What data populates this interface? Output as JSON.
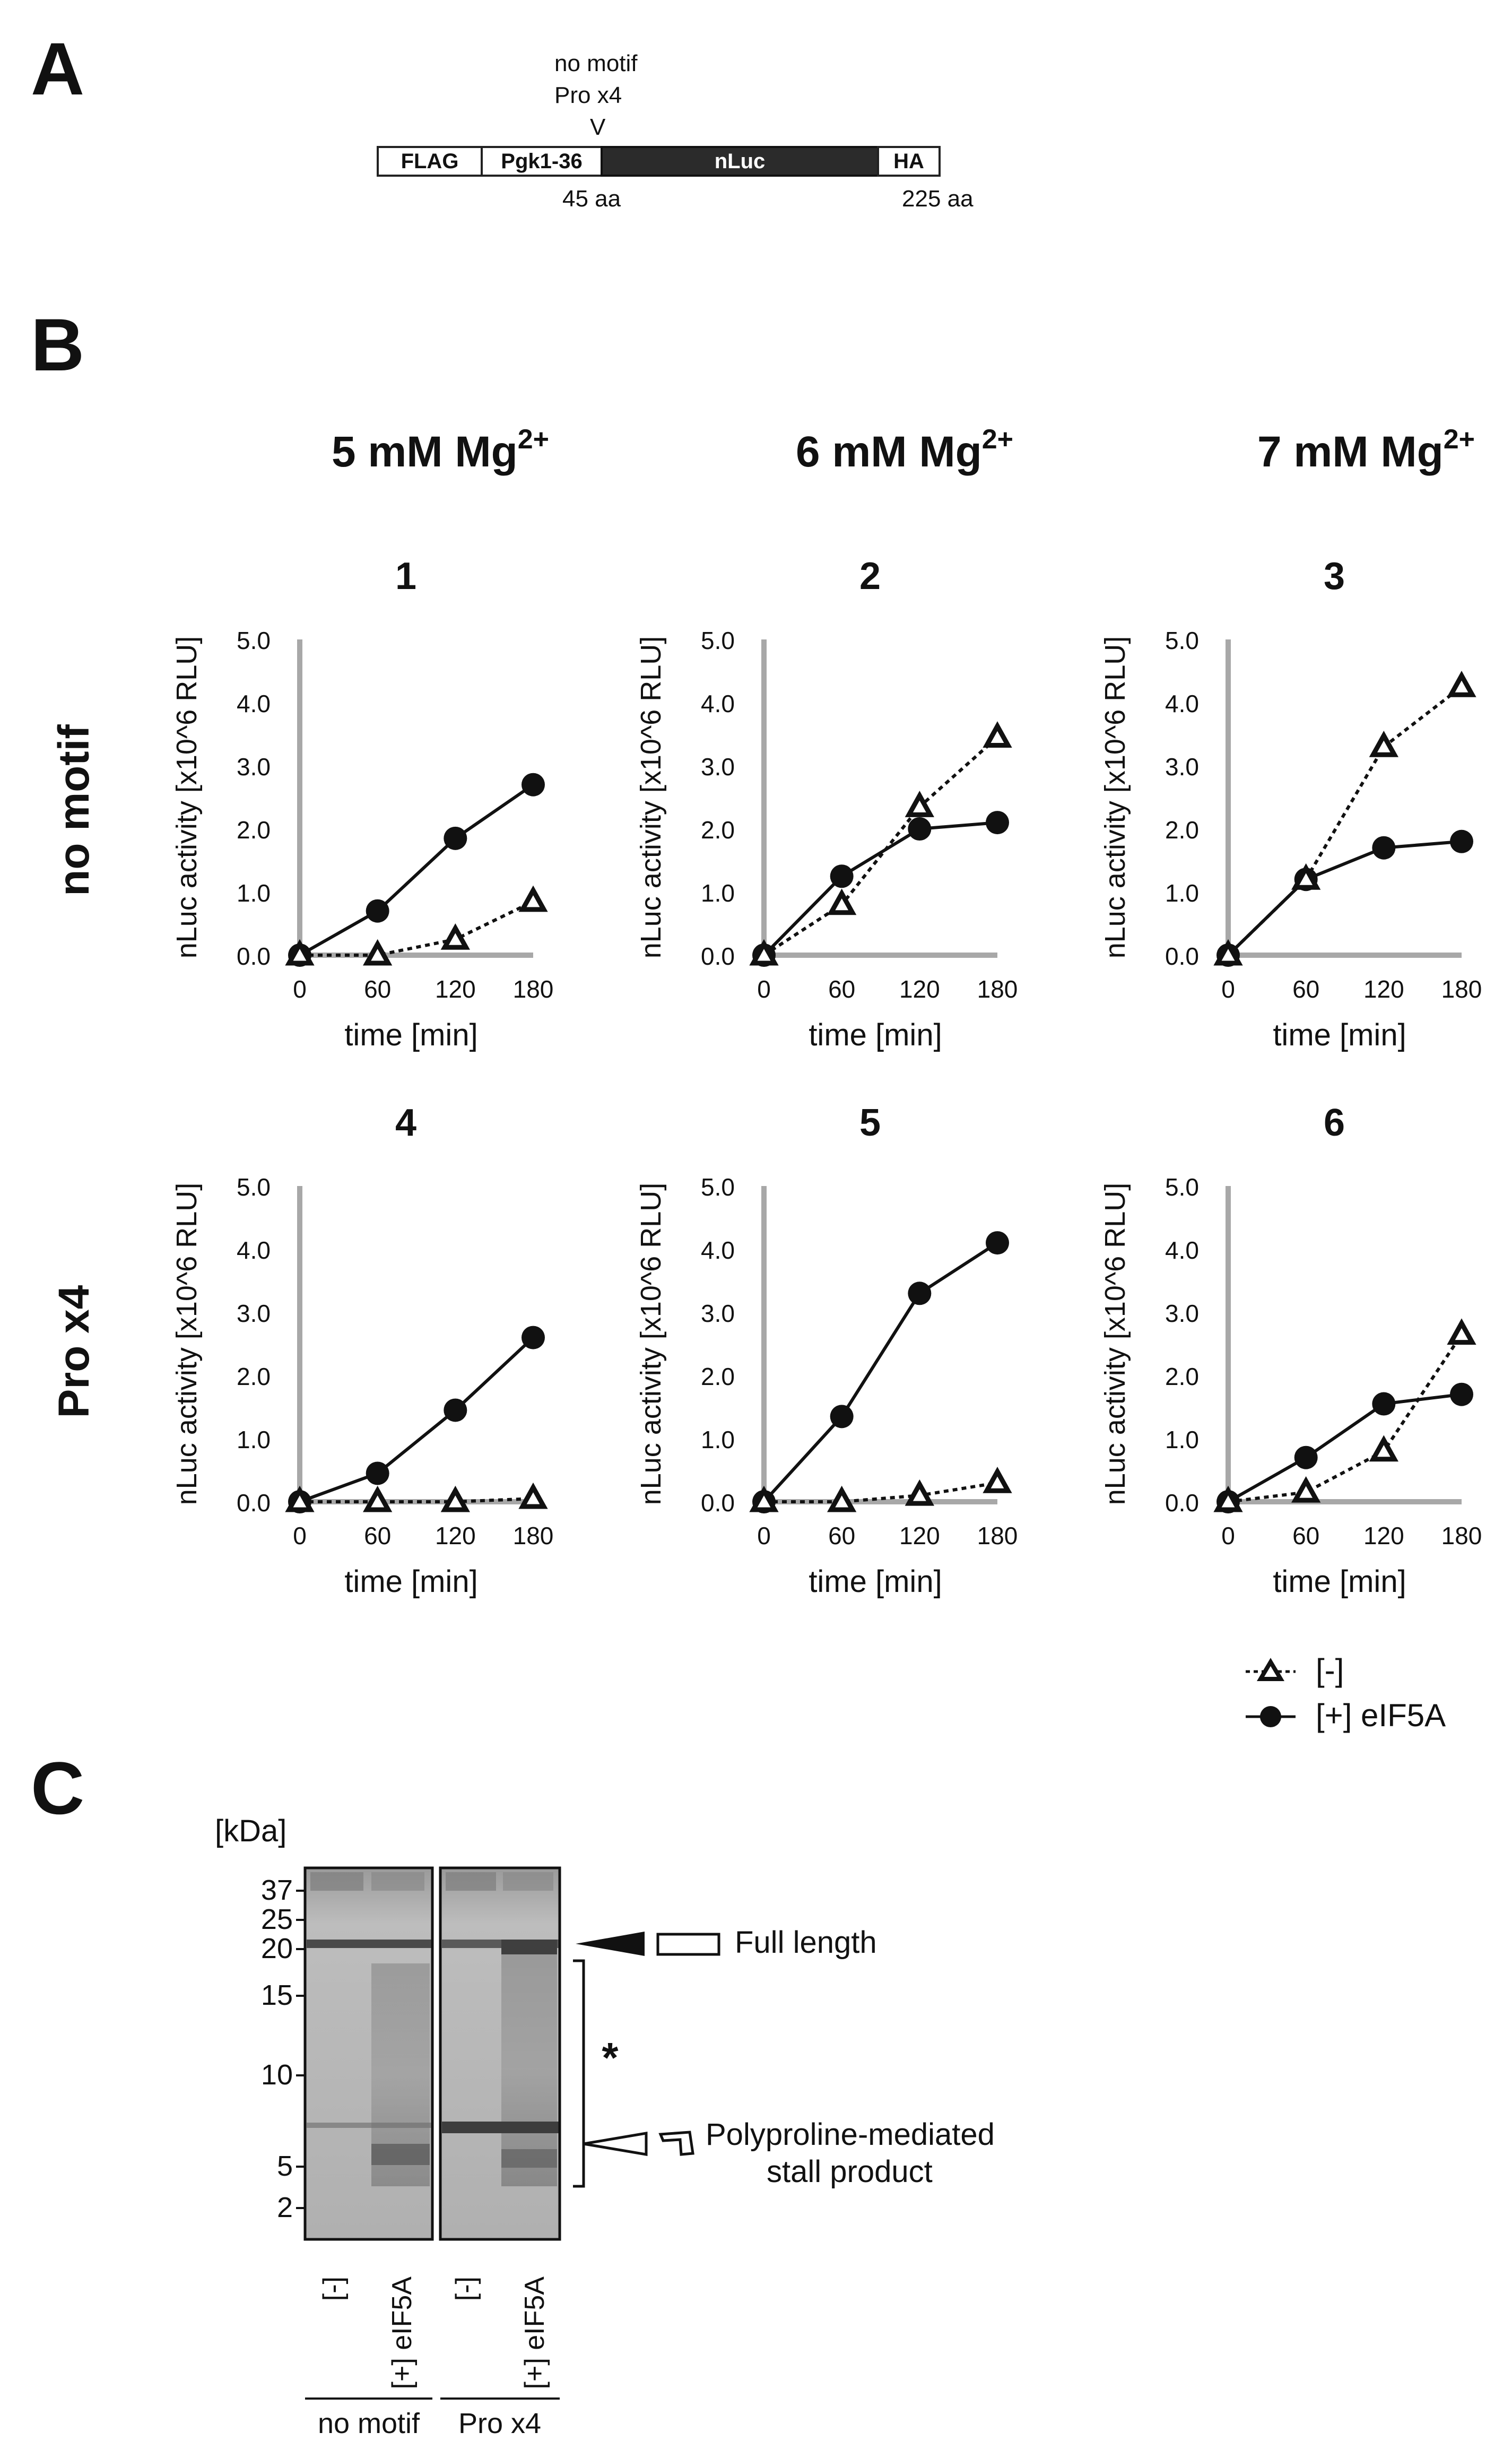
{
  "panel_a": {
    "letter": "A",
    "mutation_labels": [
      "no motif",
      "Pro x4"
    ],
    "insertion_marker": "V",
    "segments": {
      "flag": "FLAG",
      "pgk": "Pgk1-36",
      "nluc": "nLuc",
      "ha": "HA"
    },
    "position_left": "45 aa",
    "position_right": "225 aa"
  },
  "panel_b": {
    "letter": "B",
    "columns": [
      "5 mM Mg",
      "6 mM Mg",
      "7 mM Mg"
    ],
    "columns_superscript": "2+",
    "rows": [
      "no motif",
      "Pro x4"
    ],
    "legend": {
      "minus": "[-]",
      "plus": "[+] eIF5A"
    }
  },
  "chart_data": [
    {
      "type": "line",
      "panel_number": "1",
      "xlabel": "time [min]",
      "ylabel": "nLuc activity [x10^6 RLU]",
      "x": [
        0,
        60,
        120,
        180
      ],
      "xticks": [
        "0",
        "60",
        "120",
        "180"
      ],
      "yticks": [
        "0.0",
        "1.0",
        "2.0",
        "3.0",
        "4.0",
        "5.0"
      ],
      "ylim": [
        0,
        5
      ],
      "series": [
        {
          "name": "[-]",
          "values": [
            0.0,
            0.0,
            0.25,
            0.85
          ]
        },
        {
          "name": "[+] eIF5A",
          "values": [
            0.0,
            0.7,
            1.85,
            2.7
          ]
        }
      ]
    },
    {
      "type": "line",
      "panel_number": "2",
      "xlabel": "time [min]",
      "ylabel": "nLuc activity [x10^6 RLU]",
      "x": [
        0,
        60,
        120,
        180
      ],
      "xticks": [
        "0",
        "60",
        "120",
        "180"
      ],
      "yticks": [
        "0.0",
        "1.0",
        "2.0",
        "3.0",
        "4.0",
        "5.0"
      ],
      "ylim": [
        0,
        5
      ],
      "series": [
        {
          "name": "[-]",
          "values": [
            0.0,
            0.8,
            2.35,
            3.45
          ]
        },
        {
          "name": "[+] eIF5A",
          "values": [
            0.0,
            1.25,
            2.0,
            2.1
          ]
        }
      ]
    },
    {
      "type": "line",
      "panel_number": "3",
      "xlabel": "time [min]",
      "ylabel": "nLuc activity [x10^6 RLU]",
      "x": [
        0,
        60,
        120,
        180
      ],
      "xticks": [
        "0",
        "60",
        "120",
        "180"
      ],
      "yticks": [
        "0.0",
        "1.0",
        "2.0",
        "3.0",
        "4.0",
        "5.0"
      ],
      "ylim": [
        0,
        5
      ],
      "series": [
        {
          "name": "[-]",
          "values": [
            0.0,
            1.2,
            3.3,
            4.25
          ]
        },
        {
          "name": "[+] eIF5A",
          "values": [
            0.0,
            1.2,
            1.7,
            1.8
          ]
        }
      ]
    },
    {
      "type": "line",
      "panel_number": "4",
      "xlabel": "time [min]",
      "ylabel": "nLuc activity [x10^6 RLU]",
      "x": [
        0,
        60,
        120,
        180
      ],
      "xticks": [
        "0",
        "60",
        "120",
        "180"
      ],
      "yticks": [
        "0.0",
        "1.0",
        "2.0",
        "3.0",
        "4.0",
        "5.0"
      ],
      "ylim": [
        0,
        5
      ],
      "series": [
        {
          "name": "[-]",
          "values": [
            0.0,
            0.0,
            0.0,
            0.05
          ]
        },
        {
          "name": "[+] eIF5A",
          "values": [
            0.0,
            0.45,
            1.45,
            2.6
          ]
        }
      ]
    },
    {
      "type": "line",
      "panel_number": "5",
      "xlabel": "time [min]",
      "ylabel": "nLuc activity [x10^6 RLU]",
      "x": [
        0,
        60,
        120,
        180
      ],
      "xticks": [
        "0",
        "60",
        "120",
        "180"
      ],
      "yticks": [
        "0.0",
        "1.0",
        "2.0",
        "3.0",
        "4.0",
        "5.0"
      ],
      "ylim": [
        0,
        5
      ],
      "series": [
        {
          "name": "[-]",
          "values": [
            0.0,
            0.0,
            0.1,
            0.3
          ]
        },
        {
          "name": "[+] eIF5A",
          "values": [
            0.0,
            1.35,
            3.3,
            4.1
          ]
        }
      ]
    },
    {
      "type": "line",
      "panel_number": "6",
      "xlabel": "time [min]",
      "ylabel": "nLuc activity [x10^6 RLU]",
      "x": [
        0,
        60,
        120,
        180
      ],
      "xticks": [
        "0",
        "60",
        "120",
        "180"
      ],
      "yticks": [
        "0.0",
        "1.0",
        "2.0",
        "3.0",
        "4.0",
        "5.0"
      ],
      "ylim": [
        0,
        5
      ],
      "series": [
        {
          "name": "[-]",
          "values": [
            0.0,
            0.15,
            0.8,
            2.65
          ]
        },
        {
          "name": "[+] eIF5A",
          "values": [
            0.0,
            0.7,
            1.55,
            1.7
          ]
        }
      ]
    }
  ],
  "panel_c": {
    "letter": "C",
    "unit": "[kDa]",
    "markers": [
      "37",
      "25",
      "20",
      "15",
      "10",
      "5",
      "2"
    ],
    "lane_labels": [
      "[-]",
      "[+] eIF5A",
      "[-]",
      "[+] eIF5A"
    ],
    "groups": [
      "no motif",
      "Pro x4"
    ],
    "asterisk": "*",
    "full_length": "Full length",
    "stall_line1": "Polyproline-mediated",
    "stall_line2": "stall product"
  },
  "colors": {
    "axis": "#a8a8a8",
    "line": "#111111",
    "gel_bg": "#c4c4c4",
    "gel_band": "#4a4a4a"
  }
}
